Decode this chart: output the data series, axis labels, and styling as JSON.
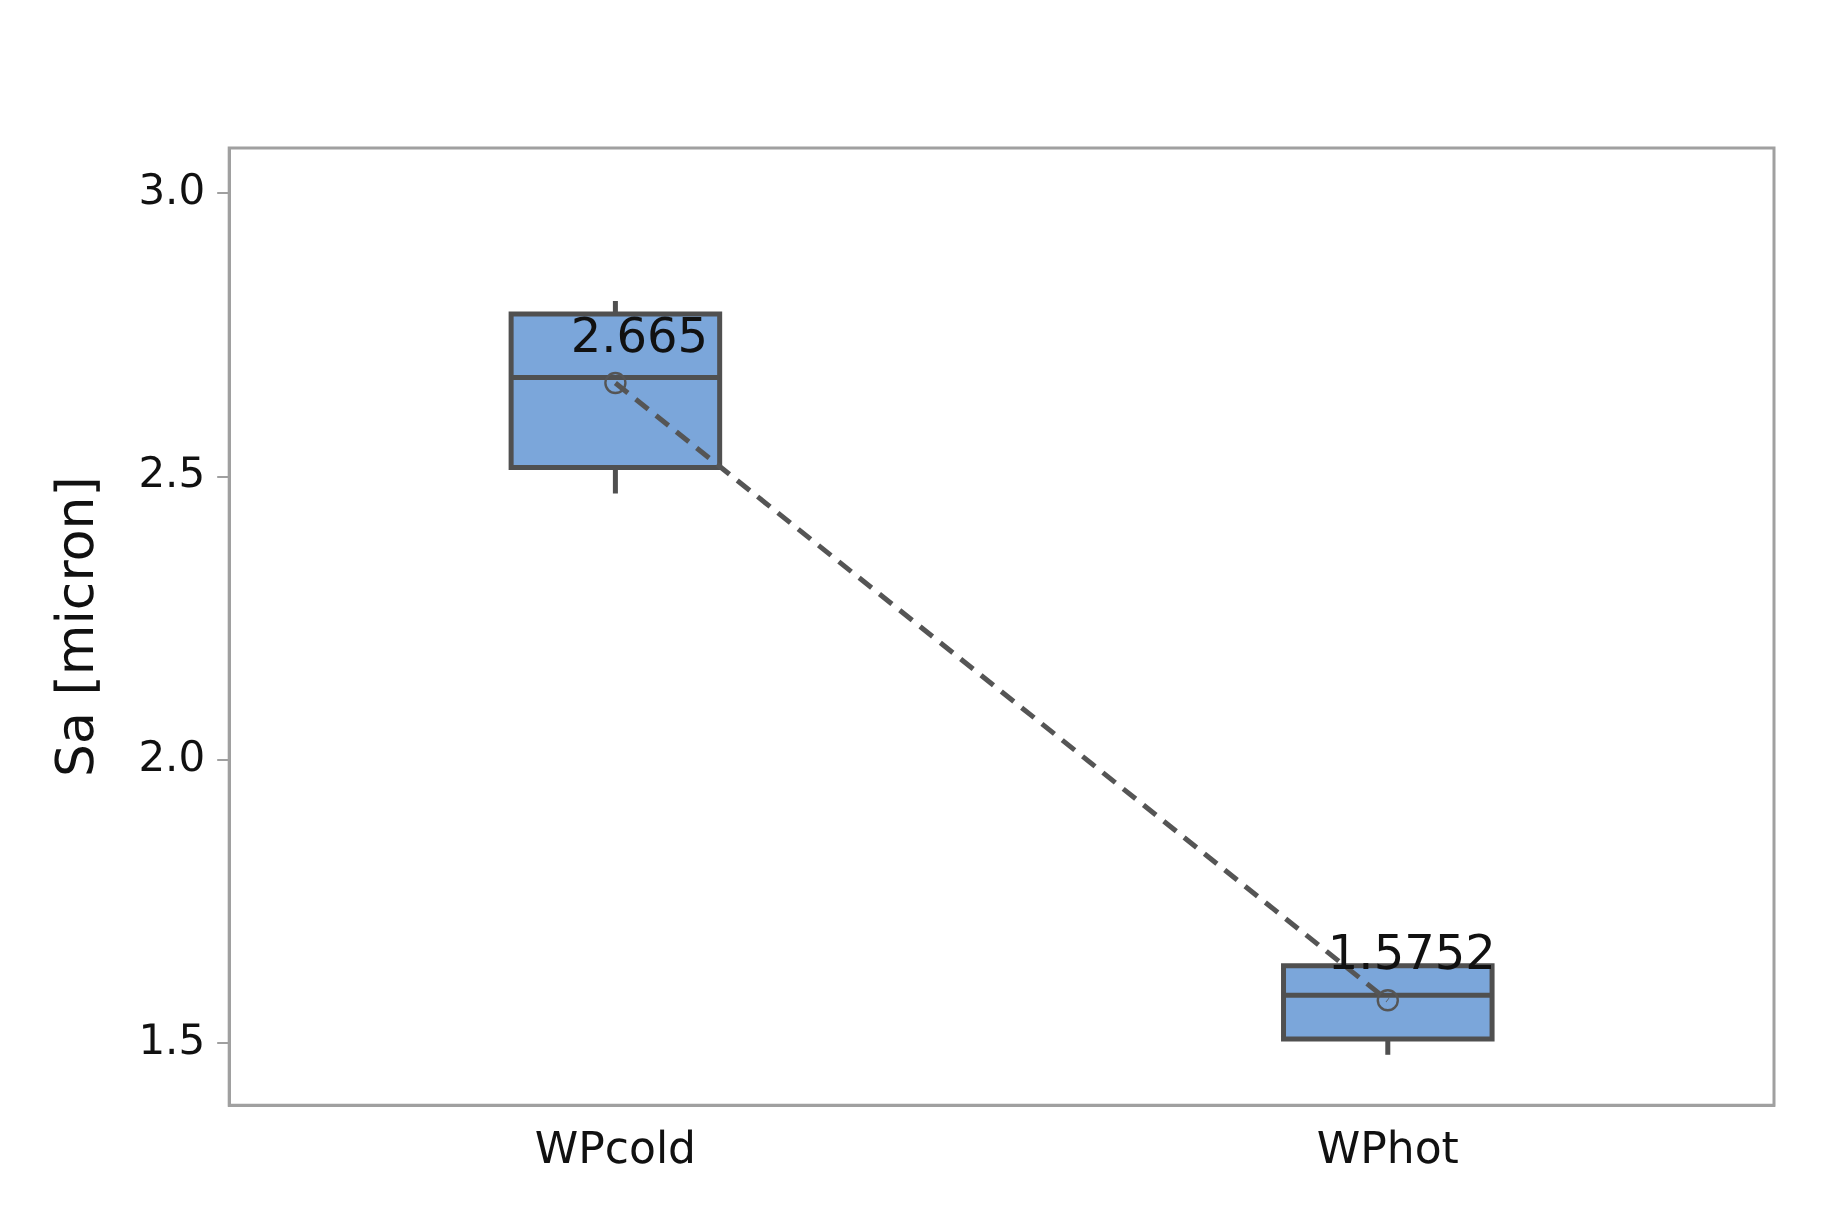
{
  "chart_data": {
    "type": "box",
    "ylabel": "Sa [micron]",
    "categories": [
      "WPcold",
      "WPhot"
    ],
    "ylim": [
      1.39,
      3.08
    ],
    "yticks": [
      {
        "value": 1.5,
        "label": "1.5"
      },
      {
        "value": 2,
        "label": "2.0"
      },
      {
        "value": 2.5,
        "label": "2.5"
      },
      {
        "value": 3,
        "label": "3.0"
      }
    ],
    "grid": false,
    "legend": false,
    "series": [
      {
        "type": "box",
        "color": "#7ba6da",
        "boxes": [
          {
            "low": 2.47,
            "q1": 2.516,
            "median": 2.675,
            "q3": 2.787,
            "high": 2.81
          },
          {
            "low": 1.479,
            "q1": 1.507,
            "median": 1.584,
            "q3": 1.636,
            "high": 1.636
          }
        ]
      },
      {
        "type": "line",
        "color": "#555555",
        "values": [
          2.665,
          1.5752
        ],
        "value_labels": [
          "2.665",
          "1.5752"
        ],
        "line_style": "dashed",
        "marker": "circle"
      }
    ]
  }
}
